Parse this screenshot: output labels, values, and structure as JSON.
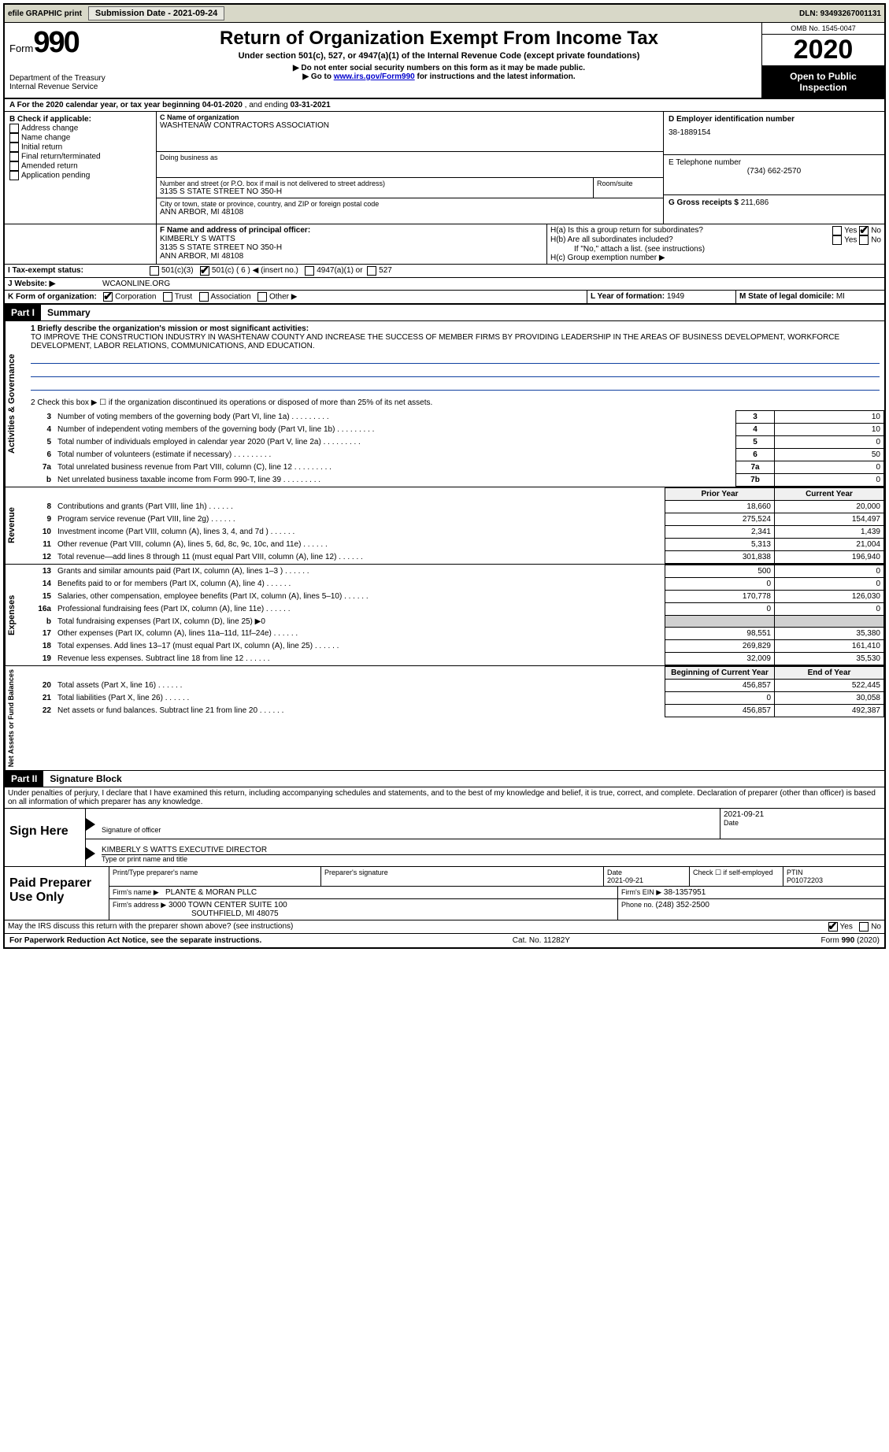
{
  "topbar": {
    "efile": "efile GRAPHIC print",
    "submission_label": "Submission Date - 2021-09-24",
    "dln_label": "DLN: 93493267001131"
  },
  "header": {
    "form_word": "Form",
    "form_number": "990",
    "dept": "Department of the Treasury",
    "irs": "Internal Revenue Service",
    "title": "Return of Organization Exempt From Income Tax",
    "subtitle": "Under section 501(c), 527, or 4947(a)(1) of the Internal Revenue Code (except private foundations)",
    "note1": "▶ Do not enter social security numbers on this form as it may be made public.",
    "note2_pre": "▶ Go to ",
    "note2_link": "www.irs.gov/Form990",
    "note2_post": " for instructions and the latest information.",
    "omb": "OMB No. 1545-0047",
    "year": "2020",
    "inspect": "Open to Public Inspection"
  },
  "sectionA": {
    "text_pre": "A For the 2020 calendar year, or tax year beginning ",
    "begin": "04-01-2020",
    "mid": " , and ending ",
    "end": "03-31-2021"
  },
  "blockB": {
    "title": "B Check if applicable:",
    "items": [
      "Address change",
      "Name change",
      "Initial return",
      "Final return/terminated",
      "Amended return",
      "Application pending"
    ]
  },
  "blockC": {
    "label_name": "C Name of organization",
    "org_name": "WASHTENAW CONTRACTORS ASSOCIATION",
    "dba_label": "Doing business as",
    "addr_label": "Number and street (or P.O. box if mail is not delivered to street address)",
    "room_label": "Room/suite",
    "addr": "3135 S STATE STREET NO 350-H",
    "city_label": "City or town, state or province, country, and ZIP or foreign postal code",
    "city": "ANN ARBOR, MI  48108"
  },
  "blockD": {
    "label": "D Employer identification number",
    "value": "38-1889154"
  },
  "blockE": {
    "label": "E Telephone number",
    "value": "(734) 662-2570"
  },
  "blockG": {
    "label": "G Gross receipts $ ",
    "value": "211,686"
  },
  "blockF": {
    "label": "F Name and address of principal officer:",
    "name": "KIMBERLY S WATTS",
    "addr1": "3135 S STATE STREET NO 350-H",
    "addr2": "ANN ARBOR, MI  48108"
  },
  "blockH": {
    "ha_label": "H(a)  Is this a group return for subordinates?",
    "hb_label": "H(b)  Are all subordinates included?",
    "hb_note": "If \"No,\" attach a list. (see instructions)",
    "hc_label": "H(c)  Group exemption number ▶"
  },
  "blockI": {
    "label": "I   Tax-exempt status:",
    "opt1": "501(c)(3)",
    "opt2": "501(c) ( 6 ) ◀ (insert no.)",
    "opt3": "4947(a)(1) or",
    "opt4": "527"
  },
  "blockJ": {
    "label": "J   Website: ▶",
    "value": "WCAONLINE.ORG"
  },
  "blockK": {
    "label": "K Form of organization:",
    "opts": [
      "Corporation",
      "Trust",
      "Association",
      "Other ▶"
    ]
  },
  "blockL": {
    "label": "L Year of formation: ",
    "value": "1949"
  },
  "blockM": {
    "label": "M State of legal domicile: ",
    "value": "MI"
  },
  "part1": {
    "header": "Part I",
    "title": "Summary",
    "line1_label": "1  Briefly describe the organization's mission or most significant activities:",
    "mission": "TO IMPROVE THE CONSTRUCTION INDUSTRY IN WASHTENAW COUNTY AND INCREASE THE SUCCESS OF MEMBER FIRMS BY PROVIDING LEADERSHIP IN THE AREAS OF BUSINESS DEVELOPMENT, WORKFORCE DEVELOPMENT, LABOR RELATIONS, COMMUNICATIONS, AND EDUCATION.",
    "line2": "2   Check this box ▶ ☐ if the organization discontinued its operations or disposed of more than 25% of its net assets.",
    "gov_rows": [
      {
        "n": "3",
        "t": "Number of voting members of the governing body (Part VI, line 1a)",
        "box": "3",
        "v": "10"
      },
      {
        "n": "4",
        "t": "Number of independent voting members of the governing body (Part VI, line 1b)",
        "box": "4",
        "v": "10"
      },
      {
        "n": "5",
        "t": "Total number of individuals employed in calendar year 2020 (Part V, line 2a)",
        "box": "5",
        "v": "0"
      },
      {
        "n": "6",
        "t": "Total number of volunteers (estimate if necessary)",
        "box": "6",
        "v": "50"
      },
      {
        "n": "7a",
        "t": "Total unrelated business revenue from Part VIII, column (C), line 12",
        "box": "7a",
        "v": "0"
      },
      {
        "n": "b",
        "t": "Net unrelated business taxable income from Form 990-T, line 39",
        "box": "7b",
        "v": "0"
      }
    ],
    "col_prior": "Prior Year",
    "col_current": "Current Year",
    "rev_rows": [
      {
        "n": "8",
        "t": "Contributions and grants (Part VIII, line 1h)",
        "p": "18,660",
        "c": "20,000"
      },
      {
        "n": "9",
        "t": "Program service revenue (Part VIII, line 2g)",
        "p": "275,524",
        "c": "154,497"
      },
      {
        "n": "10",
        "t": "Investment income (Part VIII, column (A), lines 3, 4, and 7d )",
        "p": "2,341",
        "c": "1,439"
      },
      {
        "n": "11",
        "t": "Other revenue (Part VIII, column (A), lines 5, 6d, 8c, 9c, 10c, and 11e)",
        "p": "5,313",
        "c": "21,004"
      },
      {
        "n": "12",
        "t": "Total revenue—add lines 8 through 11 (must equal Part VIII, column (A), line 12)",
        "p": "301,838",
        "c": "196,940"
      }
    ],
    "exp_rows": [
      {
        "n": "13",
        "t": "Grants and similar amounts paid (Part IX, column (A), lines 1–3 )",
        "p": "500",
        "c": "0"
      },
      {
        "n": "14",
        "t": "Benefits paid to or for members (Part IX, column (A), line 4)",
        "p": "0",
        "c": "0"
      },
      {
        "n": "15",
        "t": "Salaries, other compensation, employee benefits (Part IX, column (A), lines 5–10)",
        "p": "170,778",
        "c": "126,030"
      },
      {
        "n": "16a",
        "t": "Professional fundraising fees (Part IX, column (A), line 11e)",
        "p": "0",
        "c": "0"
      },
      {
        "n": "b",
        "t": "Total fundraising expenses (Part IX, column (D), line 25) ▶0",
        "p": "",
        "c": "",
        "noval": true
      },
      {
        "n": "17",
        "t": "Other expenses (Part IX, column (A), lines 11a–11d, 11f–24e)",
        "p": "98,551",
        "c": "35,380"
      },
      {
        "n": "18",
        "t": "Total expenses. Add lines 13–17 (must equal Part IX, column (A), line 25)",
        "p": "269,829",
        "c": "161,410"
      },
      {
        "n": "19",
        "t": "Revenue less expenses. Subtract line 18 from line 12",
        "p": "32,009",
        "c": "35,530"
      }
    ],
    "col_begin": "Beginning of Current Year",
    "col_end": "End of Year",
    "net_rows": [
      {
        "n": "20",
        "t": "Total assets (Part X, line 16)",
        "p": "456,857",
        "c": "522,445"
      },
      {
        "n": "21",
        "t": "Total liabilities (Part X, line 26)",
        "p": "0",
        "c": "30,058"
      },
      {
        "n": "22",
        "t": "Net assets or fund balances. Subtract line 21 from line 20",
        "p": "456,857",
        "c": "492,387"
      }
    ],
    "vlabels": {
      "gov": "Activities & Governance",
      "rev": "Revenue",
      "exp": "Expenses",
      "net": "Net Assets or Fund Balances"
    }
  },
  "part2": {
    "header": "Part II",
    "title": "Signature Block",
    "perjury": "Under penalties of perjury, I declare that I have examined this return, including accompanying schedules and statements, and to the best of my knowledge and belief, it is true, correct, and complete. Declaration of preparer (other than officer) is based on all information of which preparer has any knowledge.",
    "sign_here": "Sign Here",
    "sig_officer": "Signature of officer",
    "sig_date": "2021-09-21",
    "date_label": "Date",
    "name_title": "KIMBERLY S WATTS  EXECUTIVE DIRECTOR",
    "name_label": "Type or print name and title",
    "paid": "Paid Preparer Use Only",
    "p_name_label": "Print/Type preparer's name",
    "p_sig_label": "Preparer's signature",
    "p_date_label": "Date",
    "p_date": "2021-09-21",
    "p_self_label": "Check ☐ if self-employed",
    "ptin_label": "PTIN",
    "ptin": "P01072203",
    "firm_name_label": "Firm's name    ▶",
    "firm_name": "PLANTE & MORAN PLLC",
    "firm_ein_label": "Firm's EIN ▶",
    "firm_ein": "38-1357951",
    "firm_addr_label": "Firm's address ▶",
    "firm_addr1": "3000 TOWN CENTER SUITE 100",
    "firm_addr2": "SOUTHFIELD, MI  48075",
    "phone_label": "Phone no. ",
    "phone": "(248) 352-2500",
    "discuss": "May the IRS discuss this return with the preparer shown above? (see instructions)"
  },
  "footer": {
    "left": "For Paperwork Reduction Act Notice, see the separate instructions.",
    "mid": "Cat. No. 11282Y",
    "right": "Form 990 (2020)"
  },
  "yesno": {
    "yes": "Yes",
    "no": "No"
  }
}
